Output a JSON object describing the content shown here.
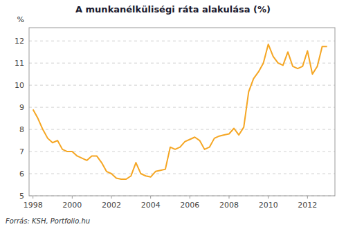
{
  "chart_data": {
    "type": "line",
    "title": "A munkanélküliségi ráta alakulása (%)",
    "ylabel": "%",
    "source": "Forrás: KSH, Portfolio.hu",
    "color": "#F5A623",
    "xlim": [
      1997.8,
      2013.4
    ],
    "xticks": [
      1998,
      2000,
      2002,
      2004,
      2006,
      2008,
      2010,
      2012
    ],
    "ylim": [
      5,
      12.6
    ],
    "yticks": [
      5,
      6,
      7,
      8,
      9,
      10,
      11,
      12
    ],
    "grid": true,
    "x": [
      1998.0,
      1998.25,
      1998.5,
      1998.75,
      1999.0,
      1999.25,
      1999.5,
      1999.75,
      2000.0,
      2000.25,
      2000.5,
      2000.75,
      2001.0,
      2001.25,
      2001.5,
      2001.75,
      2002.0,
      2002.25,
      2002.5,
      2002.75,
      2003.0,
      2003.25,
      2003.5,
      2003.75,
      2004.0,
      2004.25,
      2004.5,
      2004.75,
      2005.0,
      2005.25,
      2005.5,
      2005.75,
      2006.0,
      2006.25,
      2006.5,
      2006.75,
      2007.0,
      2007.25,
      2007.5,
      2007.75,
      2008.0,
      2008.25,
      2008.5,
      2008.75,
      2009.0,
      2009.25,
      2009.5,
      2009.75,
      2010.0,
      2010.25,
      2010.5,
      2010.75,
      2011.0,
      2011.25,
      2011.5,
      2011.75,
      2012.0,
      2012.25,
      2012.5,
      2012.75,
      2013.0
    ],
    "values": [
      8.9,
      8.5,
      8.0,
      7.6,
      7.4,
      7.5,
      7.1,
      7.0,
      7.0,
      6.8,
      6.7,
      6.6,
      6.8,
      6.8,
      6.5,
      6.1,
      6.0,
      5.8,
      5.75,
      5.75,
      5.9,
      6.5,
      6.0,
      5.9,
      5.85,
      6.1,
      6.15,
      6.2,
      7.2,
      7.1,
      7.2,
      7.45,
      7.55,
      7.65,
      7.5,
      7.1,
      7.2,
      7.6,
      7.7,
      7.75,
      7.8,
      8.05,
      7.75,
      8.1,
      9.7,
      10.3,
      10.6,
      11.0,
      11.85,
      11.3,
      11.0,
      10.9,
      11.5,
      10.85,
      10.75,
      10.85,
      11.55,
      10.5,
      10.85,
      11.75,
      11.75
    ]
  }
}
